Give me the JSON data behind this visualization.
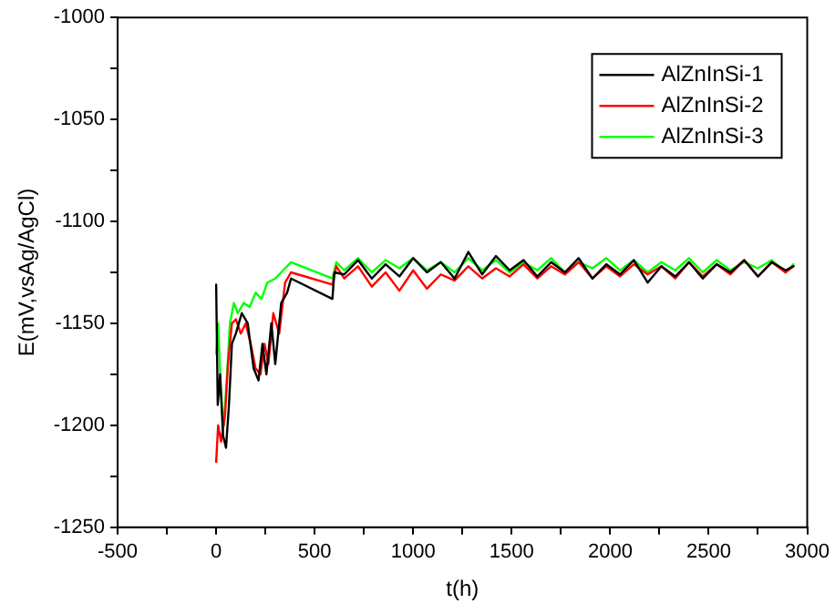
{
  "chart_data": {
    "type": "line",
    "xlabel": "t(h)",
    "ylabel": "E(mV,vsAg/AgCl)",
    "xlim": [
      -500,
      3000
    ],
    "ylim": [
      -1250,
      -1000
    ],
    "xticks": [
      -500,
      {
        "value": -250,
        "label": null
      },
      0,
      {
        "value": 250,
        "label": null
      },
      500,
      {
        "value": 750,
        "label": null
      },
      1000,
      {
        "value": 1250,
        "label": null
      },
      1500,
      {
        "value": 1750,
        "label": null
      },
      2000,
      {
        "value": 2250,
        "label": null
      },
      2500,
      {
        "value": 2750,
        "label": null
      },
      3000
    ],
    "yticks": [
      -1250,
      {
        "value": -1225,
        "label": null
      },
      -1200,
      {
        "value": -1175,
        "label": null
      },
      -1150,
      {
        "value": -1125,
        "label": null
      },
      -1100,
      {
        "value": -1075,
        "label": null
      },
      -1050,
      {
        "value": -1025,
        "label": null
      },
      -1000
    ],
    "grid": false,
    "legend": "top right",
    "series": [
      {
        "name": "AlZnInSi-1",
        "color": "#000000",
        "x": [
          0,
          8,
          20,
          35,
          50,
          65,
          80,
          100,
          130,
          160,
          190,
          215,
          235,
          255,
          280,
          300,
          330,
          360,
          380,
          590,
          600,
          650,
          720,
          790,
          860,
          930,
          1000,
          1070,
          1140,
          1210,
          1280,
          1350,
          1420,
          1490,
          1560,
          1630,
          1700,
          1770,
          1840,
          1910,
          1980,
          2050,
          2120,
          2190,
          2260,
          2330,
          2400,
          2470,
          2540,
          2610,
          2680,
          2750,
          2820,
          2890,
          2930
        ],
        "values": [
          -1131,
          -1190,
          -1175,
          -1205,
          -1211,
          -1190,
          -1160,
          -1155,
          -1145,
          -1150,
          -1172,
          -1178,
          -1160,
          -1175,
          -1150,
          -1170,
          -1140,
          -1135,
          -1128,
          -1138,
          -1125,
          -1126,
          -1119,
          -1128,
          -1121,
          -1127,
          -1118,
          -1125,
          -1120,
          -1128,
          -1115,
          -1126,
          -1117,
          -1124,
          -1119,
          -1127,
          -1120,
          -1125,
          -1118,
          -1128,
          -1121,
          -1126,
          -1119,
          -1130,
          -1122,
          -1127,
          -1120,
          -1128,
          -1121,
          -1125,
          -1119,
          -1127,
          -1120,
          -1124,
          -1122
        ]
      },
      {
        "name": "AlZnInSi-2",
        "color": "#ff0000",
        "x": [
          0,
          10,
          25,
          45,
          60,
          80,
          100,
          125,
          150,
          175,
          200,
          225,
          245,
          265,
          290,
          320,
          350,
          380,
          590,
          610,
          650,
          720,
          790,
          860,
          930,
          1000,
          1070,
          1140,
          1210,
          1280,
          1350,
          1420,
          1490,
          1560,
          1630,
          1700,
          1770,
          1840,
          1910,
          1980,
          2050,
          2120,
          2190,
          2260,
          2330,
          2400,
          2470,
          2540,
          2610,
          2680,
          2750,
          2820,
          2890,
          2930
        ],
        "values": [
          -1218,
          -1200,
          -1208,
          -1195,
          -1170,
          -1150,
          -1148,
          -1155,
          -1150,
          -1160,
          -1172,
          -1175,
          -1160,
          -1170,
          -1145,
          -1155,
          -1130,
          -1125,
          -1131,
          -1122,
          -1128,
          -1122,
          -1132,
          -1125,
          -1134,
          -1124,
          -1133,
          -1126,
          -1129,
          -1122,
          -1128,
          -1123,
          -1127,
          -1121,
          -1128,
          -1122,
          -1126,
          -1120,
          -1128,
          -1122,
          -1127,
          -1121,
          -1126,
          -1122,
          -1128,
          -1120,
          -1127,
          -1121,
          -1126,
          -1119,
          -1127,
          -1120,
          -1125,
          -1122
        ]
      },
      {
        "name": "AlZnInSi-3",
        "color": "#00ff00",
        "x": [
          0,
          10,
          25,
          40,
          55,
          70,
          90,
          110,
          140,
          170,
          200,
          230,
          260,
          300,
          340,
          380,
          590,
          610,
          650,
          720,
          790,
          860,
          930,
          1000,
          1070,
          1140,
          1210,
          1280,
          1350,
          1420,
          1490,
          1560,
          1630,
          1700,
          1770,
          1840,
          1910,
          1980,
          2050,
          2120,
          2190,
          2260,
          2330,
          2400,
          2470,
          2540,
          2610,
          2680,
          2750,
          2820,
          2890,
          2930
        ],
        "values": [
          -1165,
          -1150,
          -1185,
          -1200,
          -1175,
          -1150,
          -1140,
          -1145,
          -1140,
          -1142,
          -1135,
          -1138,
          -1130,
          -1128,
          -1124,
          -1120,
          -1128,
          -1120,
          -1124,
          -1118,
          -1125,
          -1119,
          -1123,
          -1118,
          -1124,
          -1120,
          -1125,
          -1118,
          -1124,
          -1119,
          -1125,
          -1120,
          -1124,
          -1118,
          -1125,
          -1120,
          -1123,
          -1118,
          -1124,
          -1119,
          -1125,
          -1120,
          -1124,
          -1118,
          -1125,
          -1119,
          -1124,
          -1120,
          -1123,
          -1119,
          -1125,
          -1121
        ]
      }
    ]
  }
}
